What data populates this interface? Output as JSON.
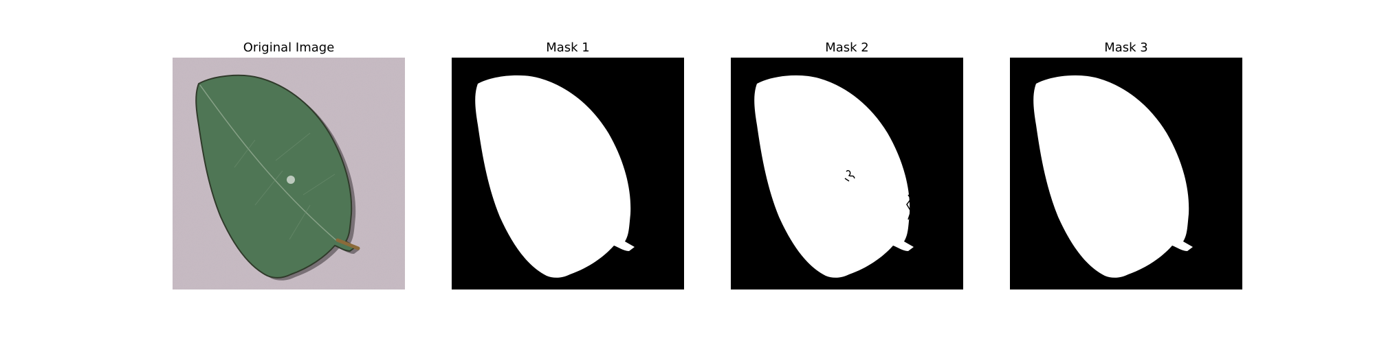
{
  "figure": {
    "panels": [
      {
        "title": "Original Image",
        "kind": "leaf-photo"
      },
      {
        "title": "Mask 1",
        "kind": "mask"
      },
      {
        "title": "Mask 2",
        "kind": "mask"
      },
      {
        "title": "Mask 3",
        "kind": "mask"
      }
    ]
  },
  "colors": {
    "background": "#c9bcc4",
    "leaf_fill": "#4f7655",
    "leaf_dark": "#3a5a40",
    "leaf_edge": "#2f3a2a",
    "petiole": "#8b6a3a",
    "mask_bg": "#000000",
    "mask_fg": "#ffffff"
  }
}
